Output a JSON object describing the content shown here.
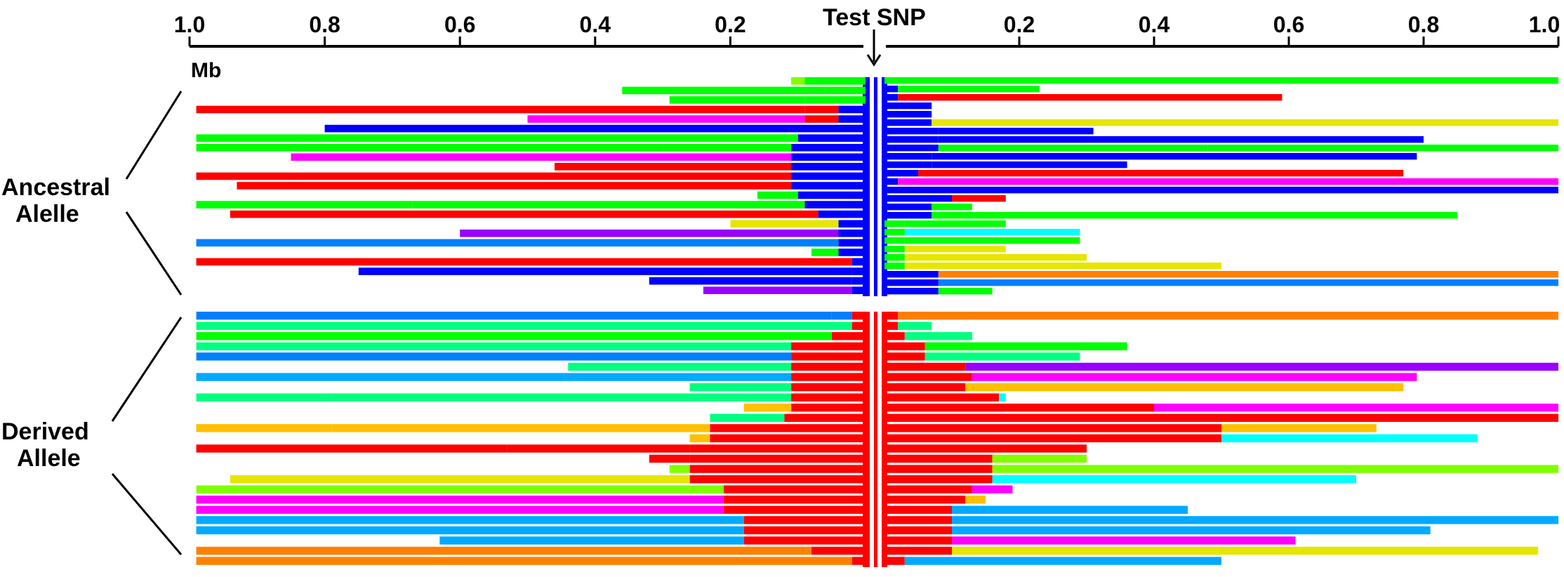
{
  "figure": {
    "unit": "Mb",
    "marker_label": "Test SNP",
    "left_ticks": [
      "1.0",
      "0.8",
      "0.6",
      "0.4",
      "0.2"
    ],
    "right_ticks": [
      "0.2",
      "0.4",
      "0.6",
      "0.8",
      "1.0"
    ],
    "groups": [
      {
        "key": "ancestral",
        "line1": "Ancestral",
        "line2": "Alelle"
      },
      {
        "key": "derived",
        "line1": "Derived",
        "line2": "Allele"
      }
    ],
    "colors": {
      "red": "#ff0000",
      "blue": "#0000ff",
      "green": "#00ff00",
      "spring": "#00ff80",
      "magenta": "#ff00ff",
      "purple": "#9900ff",
      "yellow": "#e6e600",
      "lime": "#80ff00",
      "cyan": "#00ffff",
      "azure": "#0080ff",
      "skyblue": "#00aaff",
      "orange": "#ff8000",
      "amber": "#ffc000",
      "snp_core": "#0000ff"
    }
  },
  "chart_data": {
    "type": "haplotype-bars",
    "units": "Mb",
    "xlim": [
      -1.0,
      1.0
    ],
    "left_extent_note": "",
    "ancestral": {
      "left": [
        [
          [
            "green",
            0.09
          ],
          [
            "lime",
            0.11
          ]
        ],
        [
          [
            "green",
            0.06
          ],
          [
            "green",
            0.36
          ]
        ],
        [
          [
            "green",
            0.09
          ],
          [
            "green",
            0.29
          ]
        ],
        [
          [
            "blue",
            0.04
          ],
          [
            "red",
            0.09
          ],
          [
            "red",
            0.99
          ]
        ],
        [
          [
            "blue",
            0.04
          ],
          [
            "red",
            0.09
          ],
          [
            "magenta",
            0.5
          ]
        ],
        [
          [
            "blue",
            0.04
          ],
          [
            "blue",
            0.8
          ]
        ],
        [
          [
            "blue",
            0.1
          ],
          [
            "green",
            0.99
          ]
        ],
        [
          [
            "blue",
            0.11
          ],
          [
            "green",
            0.3
          ],
          [
            "green",
            0.99
          ]
        ],
        [
          [
            "blue",
            0.11
          ],
          [
            "magenta",
            0.85
          ]
        ],
        [
          [
            "blue",
            0.11
          ],
          [
            "red",
            0.46
          ]
        ],
        [
          [
            "blue",
            0.11
          ],
          [
            "red",
            0.99
          ]
        ],
        [
          [
            "blue",
            0.11
          ],
          [
            "red",
            0.93
          ]
        ],
        [
          [
            "blue",
            0.1
          ],
          [
            "green",
            0.16
          ]
        ],
        [
          [
            "blue",
            0.09
          ],
          [
            "green",
            0.67
          ],
          [
            "green",
            0.99
          ]
        ],
        [
          [
            "blue",
            0.07
          ],
          [
            "red",
            0.94
          ]
        ],
        [
          [
            "blue",
            0.04
          ],
          [
            "yellow",
            0.2
          ]
        ],
        [
          [
            "blue",
            0.04
          ],
          [
            "purple",
            0.6
          ]
        ],
        [
          [
            "blue",
            0.04
          ],
          [
            "azure",
            0.99
          ]
        ],
        [
          [
            "blue",
            0.04
          ],
          [
            "green",
            0.08
          ]
        ],
        [
          [
            "blue",
            0.02
          ],
          [
            "red",
            0.99
          ]
        ],
        [
          [
            "blue",
            0.02
          ],
          [
            "blue",
            0.75
          ]
        ],
        [
          [
            "blue",
            0.02
          ],
          [
            "blue",
            0.32
          ]
        ],
        [
          [
            "blue",
            0.02
          ],
          [
            "purple",
            0.24
          ]
        ]
      ],
      "right": [
        [
          [
            "green",
            1.0
          ]
        ],
        [
          [
            "blue",
            0.02
          ],
          [
            "green",
            0.23
          ]
        ],
        [
          [
            "blue",
            0.02
          ],
          [
            "red",
            0.59
          ]
        ],
        [
          [
            "blue",
            0.07
          ]
        ],
        [
          [
            "blue",
            0.07
          ]
        ],
        [
          [
            "blue",
            0.07
          ],
          [
            "yellow",
            1.0
          ]
        ],
        [
          [
            "blue",
            0.08
          ],
          [
            "blue",
            0.31
          ]
        ],
        [
          [
            "blue",
            0.08
          ],
          [
            "blue",
            0.8
          ]
        ],
        [
          [
            "blue",
            0.08
          ],
          [
            "green",
            0.48
          ],
          [
            "green",
            1.0
          ]
        ],
        [
          [
            "blue",
            0.07
          ],
          [
            "blue",
            0.79
          ]
        ],
        [
          [
            "blue",
            0.07
          ],
          [
            "blue",
            0.36
          ]
        ],
        [
          [
            "blue",
            0.05
          ],
          [
            "red",
            0.77
          ]
        ],
        [
          [
            "blue",
            0.02
          ],
          [
            "magenta",
            1.0
          ]
        ],
        [
          [
            "blue",
            0.1
          ],
          [
            "blue",
            1.0
          ]
        ],
        [
          [
            "blue",
            0.1
          ],
          [
            "red",
            0.18
          ]
        ],
        [
          [
            "blue",
            0.07
          ],
          [
            "green",
            0.13
          ]
        ],
        [
          [
            "blue",
            0.07
          ],
          [
            "green",
            0.85
          ]
        ],
        [
          [
            "green",
            0.03
          ],
          [
            "green",
            0.18
          ]
        ],
        [
          [
            "green",
            0.03
          ],
          [
            "cyan",
            0.29
          ]
        ],
        [
          [
            "green",
            0.03
          ],
          [
            "green",
            0.29
          ]
        ],
        [
          [
            "green",
            0.03
          ],
          [
            "yellow",
            0.18
          ]
        ],
        [
          [
            "green",
            0.03
          ],
          [
            "yellow",
            0.3
          ]
        ],
        [
          [
            "green",
            0.03
          ],
          [
            "yellow",
            0.5
          ]
        ],
        [
          [
            "blue",
            0.08
          ],
          [
            "orange",
            1.0
          ]
        ],
        [
          [
            "blue",
            0.08
          ],
          [
            "azure",
            1.0
          ]
        ],
        [
          [
            "blue",
            0.08
          ],
          [
            "green",
            0.16
          ]
        ]
      ]
    },
    "derived": {
      "left": [
        [
          [
            "red",
            0.02
          ],
          [
            "azure",
            0.05
          ],
          [
            "azure",
            0.99
          ]
        ],
        [
          [
            "red",
            0.02
          ],
          [
            "spring",
            0.99
          ]
        ],
        [
          [
            "red",
            0.05
          ],
          [
            "green",
            0.99
          ]
        ],
        [
          [
            "red",
            0.11
          ],
          [
            "spring",
            0.99
          ]
        ],
        [
          [
            "red",
            0.11
          ],
          [
            "azure",
            0.99
          ]
        ],
        [
          [
            "red",
            0.11
          ],
          [
            "spring",
            0.44
          ]
        ],
        [
          [
            "red",
            0.11
          ],
          [
            "skyblue",
            0.99
          ]
        ],
        [
          [
            "red",
            0.11
          ],
          [
            "spring",
            0.26
          ]
        ],
        [
          [
            "red",
            0.11
          ],
          [
            "spring",
            0.79
          ],
          [
            "spring",
            0.99
          ]
        ],
        [
          [
            "red",
            0.11
          ],
          [
            "amber",
            0.18
          ]
        ],
        [
          [
            "red",
            0.12
          ],
          [
            "spring",
            0.23
          ]
        ],
        [
          [
            "red",
            0.23
          ],
          [
            "amber",
            0.79
          ],
          [
            "amber",
            0.99
          ]
        ],
        [
          [
            "red",
            0.23
          ],
          [
            "amber",
            0.26
          ]
        ],
        [
          [
            "red",
            0.26
          ],
          [
            "red",
            0.53
          ],
          [
            "red",
            0.99
          ]
        ],
        [
          [
            "red",
            0.26
          ],
          [
            "red",
            0.32
          ]
        ],
        [
          [
            "red",
            0.26
          ],
          [
            "lime",
            0.29
          ]
        ],
        [
          [
            "red",
            0.26
          ],
          [
            "yellow",
            0.94
          ]
        ],
        [
          [
            "red",
            0.21
          ],
          [
            "lime",
            0.99
          ]
        ],
        [
          [
            "red",
            0.21
          ],
          [
            "magenta",
            0.99
          ]
        ],
        [
          [
            "red",
            0.21
          ],
          [
            "magenta",
            0.99
          ]
        ],
        [
          [
            "red",
            0.18
          ],
          [
            "skyblue",
            0.99
          ]
        ],
        [
          [
            "red",
            0.18
          ],
          [
            "skyblue",
            0.99
          ]
        ],
        [
          [
            "red",
            0.18
          ],
          [
            "skyblue",
            0.63
          ]
        ],
        [
          [
            "red",
            0.08
          ],
          [
            "orange",
            0.99
          ]
        ],
        [
          [
            "red",
            0.02
          ],
          [
            "orange",
            0.99
          ]
        ]
      ],
      "right": [
        [
          [
            "red",
            0.02
          ],
          [
            "orange",
            1.0
          ]
        ],
        [
          [
            "red",
            0.02
          ],
          [
            "spring",
            0.07
          ]
        ],
        [
          [
            "red",
            0.03
          ],
          [
            "spring",
            0.13
          ]
        ],
        [
          [
            "red",
            0.06
          ],
          [
            "green",
            0.36
          ]
        ],
        [
          [
            "red",
            0.06
          ],
          [
            "spring",
            0.29
          ]
        ],
        [
          [
            "red",
            0.12
          ],
          [
            "purple",
            1.0
          ]
        ],
        [
          [
            "red",
            0.13
          ],
          [
            "magenta",
            0.79
          ]
        ],
        [
          [
            "red",
            0.12
          ],
          [
            "amber",
            0.77
          ]
        ],
        [
          [
            "red",
            0.17
          ],
          [
            "cyan",
            0.18
          ]
        ],
        [
          [
            "red",
            0.4
          ],
          [
            "magenta",
            1.0
          ]
        ],
        [
          [
            "red",
            0.4
          ],
          [
            "red",
            1.0
          ]
        ],
        [
          [
            "red",
            0.5
          ],
          [
            "amber",
            0.73
          ]
        ],
        [
          [
            "red",
            0.5
          ],
          [
            "cyan",
            0.88
          ]
        ],
        [
          [
            "red",
            0.3
          ]
        ],
        [
          [
            "red",
            0.16
          ],
          [
            "lime",
            0.3
          ]
        ],
        [
          [
            "red",
            0.16
          ],
          [
            "lime",
            1.0
          ]
        ],
        [
          [
            "red",
            0.16
          ],
          [
            "cyan",
            0.7
          ]
        ],
        [
          [
            "red",
            0.13
          ],
          [
            "magenta",
            0.19
          ]
        ],
        [
          [
            "red",
            0.12
          ],
          [
            "amber",
            0.15
          ]
        ],
        [
          [
            "red",
            0.1
          ],
          [
            "skyblue",
            0.45
          ]
        ],
        [
          [
            "red",
            0.1
          ],
          [
            "skyblue",
            1.0
          ]
        ],
        [
          [
            "red",
            0.1
          ],
          [
            "skyblue",
            0.81
          ]
        ],
        [
          [
            "red",
            0.1
          ],
          [
            "magenta",
            0.61
          ]
        ],
        [
          [
            "red",
            0.1
          ],
          [
            "yellow",
            0.97
          ]
        ],
        [
          [
            "red",
            0.03
          ],
          [
            "skyblue",
            0.5
          ]
        ]
      ]
    }
  }
}
